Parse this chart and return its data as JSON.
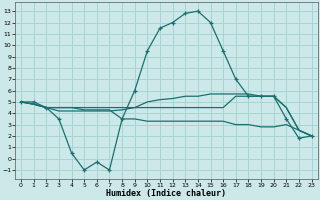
{
  "xlabel": "Humidex (Indice chaleur)",
  "bg_color": "#cce8e8",
  "grid_color": "#a8d4d4",
  "line_color": "#1a7070",
  "xlim": [
    -0.5,
    23.5
  ],
  "ylim": [
    -1.8,
    13.8
  ],
  "xticks": [
    0,
    1,
    2,
    3,
    4,
    5,
    6,
    7,
    8,
    9,
    10,
    11,
    12,
    13,
    14,
    15,
    16,
    17,
    18,
    19,
    20,
    21,
    22,
    23
  ],
  "yticks": [
    -1,
    0,
    1,
    2,
    3,
    4,
    5,
    6,
    7,
    8,
    9,
    10,
    11,
    12,
    13
  ],
  "line1_x": [
    0,
    1,
    2,
    3,
    4,
    5,
    6,
    7,
    8,
    9,
    10,
    11,
    12,
    13,
    14,
    15,
    16,
    17,
    18,
    19,
    20,
    21,
    22,
    23
  ],
  "line1_y": [
    5.0,
    5.0,
    4.5,
    3.5,
    0.5,
    -1.0,
    -0.3,
    -1.0,
    3.5,
    6.0,
    9.5,
    11.5,
    12.0,
    12.8,
    13.0,
    12.0,
    9.5,
    7.0,
    5.5,
    5.5,
    5.5,
    3.5,
    1.8,
    2.0
  ],
  "line2_x": [
    0,
    1,
    2,
    3,
    4,
    5,
    6,
    7,
    8,
    9,
    10,
    11,
    12,
    13,
    14,
    15,
    16,
    17,
    18,
    19,
    20,
    21,
    22,
    23
  ],
  "line2_y": [
    5.0,
    4.8,
    4.5,
    4.2,
    4.2,
    4.2,
    4.2,
    4.2,
    4.3,
    4.5,
    5.0,
    5.2,
    5.3,
    5.5,
    5.5,
    5.7,
    5.7,
    5.7,
    5.7,
    5.5,
    5.5,
    4.5,
    2.5,
    2.0
  ],
  "line3_x": [
    0,
    1,
    2,
    3,
    4,
    5,
    6,
    7,
    8,
    9,
    10,
    11,
    12,
    13,
    14,
    15,
    16,
    17,
    18,
    19,
    20,
    21,
    22,
    23
  ],
  "line3_y": [
    5.0,
    4.8,
    4.5,
    4.5,
    4.5,
    4.5,
    4.5,
    4.5,
    4.5,
    4.5,
    4.5,
    4.5,
    4.5,
    4.5,
    4.5,
    4.5,
    4.5,
    5.5,
    5.5,
    5.5,
    5.5,
    4.5,
    2.5,
    2.0
  ],
  "line4_x": [
    0,
    1,
    2,
    3,
    4,
    5,
    6,
    7,
    8,
    9,
    10,
    11,
    12,
    13,
    14,
    15,
    16,
    17,
    18,
    19,
    20,
    21,
    22,
    23
  ],
  "line4_y": [
    5.0,
    4.8,
    4.5,
    4.5,
    4.5,
    4.3,
    4.3,
    4.3,
    3.5,
    3.5,
    3.3,
    3.3,
    3.3,
    3.3,
    3.3,
    3.3,
    3.3,
    3.0,
    3.0,
    2.8,
    2.8,
    3.0,
    2.5,
    2.0
  ]
}
